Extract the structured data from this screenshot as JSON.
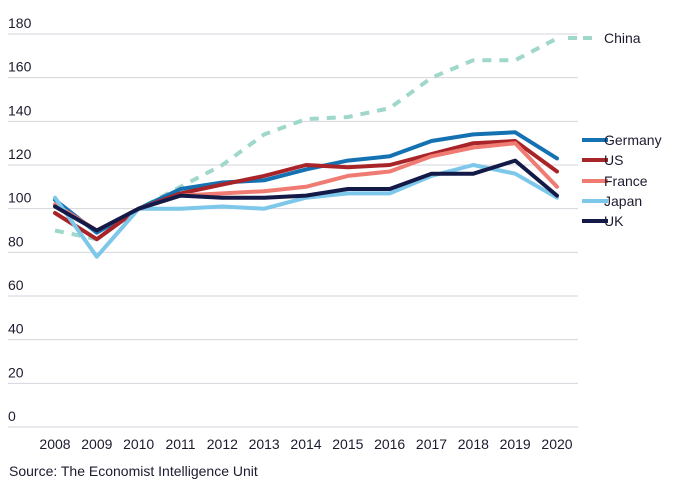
{
  "chart_data": {
    "type": "line",
    "x": [
      "2008",
      "2009",
      "2010",
      "2011",
      "2012",
      "2013",
      "2014",
      "2015",
      "2016",
      "2017",
      "2018",
      "2019",
      "2020"
    ],
    "ylim": [
      0,
      180
    ],
    "yticks": [
      0,
      20,
      40,
      60,
      80,
      100,
      120,
      140,
      160,
      180
    ],
    "grid": true,
    "legend": "right",
    "series": [
      {
        "name": "China",
        "color": "#9fd8cb",
        "dashed": true,
        "values": [
          90,
          86,
          100,
          110,
          120,
          134,
          141,
          142,
          146,
          160,
          168,
          168,
          178
        ]
      },
      {
        "name": "Germany",
        "color": "#1471b2",
        "dashed": false,
        "values": [
          104,
          89,
          100,
          109,
          112,
          113,
          118,
          122,
          124,
          131,
          134,
          135,
          123
        ]
      },
      {
        "name": "US",
        "color": "#a82428",
        "dashed": false,
        "values": [
          98,
          86,
          100,
          107,
          111,
          115,
          120,
          119,
          120,
          125,
          130,
          131,
          117
        ]
      },
      {
        "name": "France",
        "color": "#ef7b73",
        "dashed": false,
        "values": [
          102,
          90,
          100,
          106,
          107,
          108,
          110,
          115,
          117,
          124,
          128,
          130,
          110
        ]
      },
      {
        "name": "Japan",
        "color": "#7dc7ea",
        "dashed": false,
        "values": [
          105,
          78,
          100,
          100,
          101,
          100,
          105,
          107,
          107,
          115,
          120,
          116,
          105
        ]
      },
      {
        "name": "UK",
        "color": "#141a48",
        "dashed": false,
        "values": [
          101,
          90,
          100,
          106,
          105,
          105,
          106,
          109,
          109,
          116,
          116,
          122,
          106
        ]
      }
    ]
  },
  "source": "Source: The Economist Intelligence Unit"
}
